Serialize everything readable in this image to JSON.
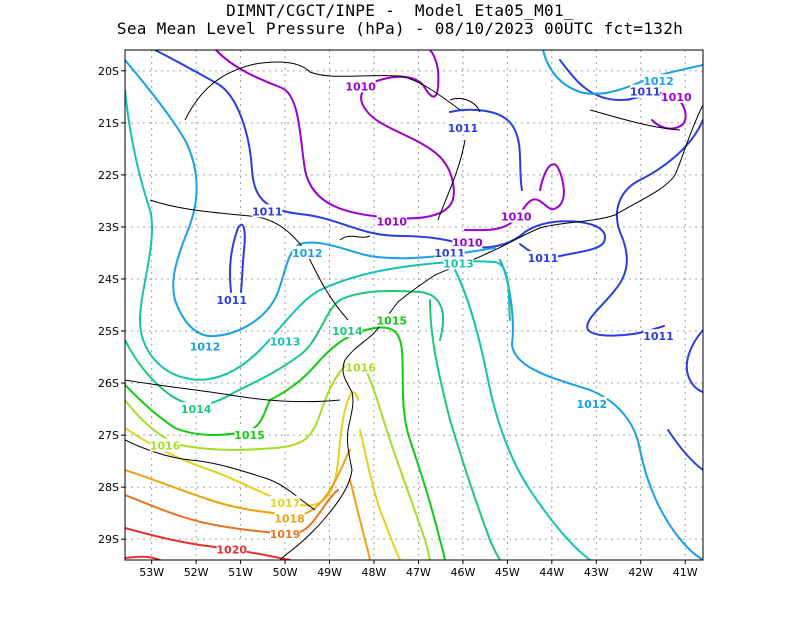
{
  "title": {
    "line1": "DIMNT/CGCT/INPE -  Model Eta05_M01_",
    "line2": "Sea Mean Level Pressure (hPa) - 08/10/2023 00UTC fct=132h"
  },
  "axes": {
    "x_ticks": [
      "53W",
      "52W",
      "51W",
      "50W",
      "49W",
      "48W",
      "47W",
      "46W",
      "45W",
      "44W",
      "43W",
      "42W",
      "41W"
    ],
    "y_ticks": [
      "20S",
      "21S",
      "22S",
      "23S",
      "24S",
      "25S",
      "26S",
      "27S",
      "28S",
      "29S"
    ]
  },
  "colors": {
    "1010": "#9b00d0",
    "1011": "#2a3ee0",
    "1012": "#1aa0e8",
    "1013": "#16c2b0",
    "1014": "#1ec87a",
    "1015": "#10cc10",
    "1016": "#a8dc28",
    "1017": "#e8d020",
    "1018": "#f0a010",
    "1019": "#e87420",
    "1020": "#e83030",
    "coast": "#000000",
    "grid": "#a0a0a0"
  },
  "labels": [
    {
      "v": "1010",
      "lon": -48.3,
      "lat": -20.3
    },
    {
      "v": "1010",
      "lon": -47.6,
      "lat": -22.9
    },
    {
      "v": "1010",
      "lon": -44.8,
      "lat": -22.8
    },
    {
      "v": "1010",
      "lon": -45.9,
      "lat": -23.3
    },
    {
      "v": "1010",
      "lon": -41.2,
      "lat": -20.5
    },
    {
      "v": "1011",
      "lon": -46.0,
      "lat": -21.1
    },
    {
      "v": "1011",
      "lon": -41.9,
      "lat": -20.4
    },
    {
      "v": "1011",
      "lon": -50.4,
      "lat": -22.7
    },
    {
      "v": "1011",
      "lon": -51.2,
      "lat": -24.4
    },
    {
      "v": "1011",
      "lon": -46.3,
      "lat": -23.5
    },
    {
      "v": "1011",
      "lon": -44.2,
      "lat": -23.6
    },
    {
      "v": "1011",
      "lon": -41.6,
      "lat": -25.1
    },
    {
      "v": "1012",
      "lon": -41.6,
      "lat": -20.2
    },
    {
      "v": "1012",
      "lon": -49.5,
      "lat": -23.5
    },
    {
      "v": "1012",
      "lon": -51.8,
      "lat": -25.3
    },
    {
      "v": "1012",
      "lon": -43.1,
      "lat": -26.4
    },
    {
      "v": "1013",
      "lon": -46.1,
      "lat": -23.7
    },
    {
      "v": "1013",
      "lon": -50.0,
      "lat": -25.2
    },
    {
      "v": "1014",
      "lon": -48.6,
      "lat": -25.0
    },
    {
      "v": "1014",
      "lon": -52.0,
      "lat": -26.5
    },
    {
      "v": "1015",
      "lon": -47.6,
      "lat": -24.8
    },
    {
      "v": "1015",
      "lon": -50.8,
      "lat": -27.0
    },
    {
      "v": "1016",
      "lon": -48.3,
      "lat": -25.7
    },
    {
      "v": "1016",
      "lon": -52.7,
      "lat": -27.2
    },
    {
      "v": "1017",
      "lon": -50.0,
      "lat": -28.3
    },
    {
      "v": "1018",
      "lon": -49.9,
      "lat": -28.6
    },
    {
      "v": "1019",
      "lon": -50.0,
      "lat": -28.9
    },
    {
      "v": "1020",
      "lon": -51.2,
      "lat": -29.2
    }
  ]
}
